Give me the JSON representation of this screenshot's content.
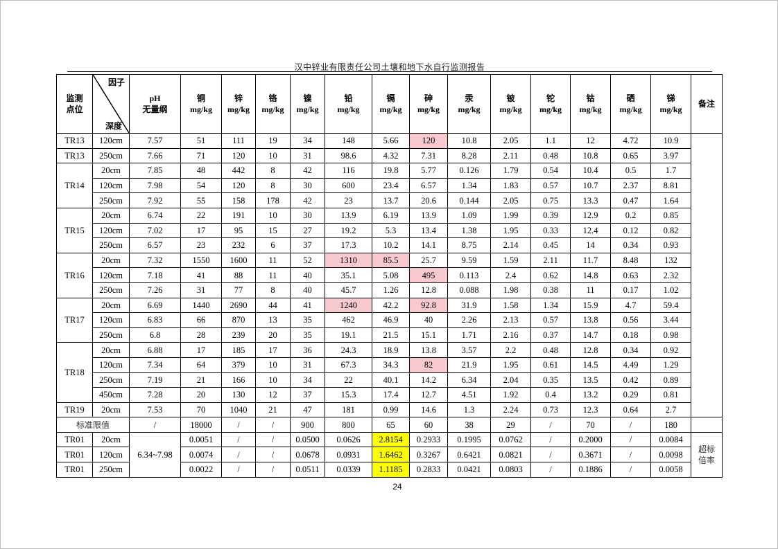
{
  "document": {
    "title": "汉中锌业有限责任公司土壤和地下水自行监测报告",
    "page_number": "24"
  },
  "table": {
    "header": {
      "site": "监测\n点位",
      "factor": "因子",
      "depth": "深度",
      "columns": [
        {
          "name": "pH",
          "unit": "无量纲"
        },
        {
          "name": "铜",
          "unit": "mg/kg"
        },
        {
          "name": "锌",
          "unit": "mg/kg"
        },
        {
          "name": "铬",
          "unit": "mg/kg"
        },
        {
          "name": "镍",
          "unit": "mg/kg"
        },
        {
          "name": "铅",
          "unit": "mg/kg"
        },
        {
          "name": "镉",
          "unit": "mg/kg"
        },
        {
          "name": "砷",
          "unit": "mg/kg"
        },
        {
          "name": "汞",
          "unit": "mg/kg"
        },
        {
          "name": "铍",
          "unit": "mg/kg"
        },
        {
          "name": "铊",
          "unit": "mg/kg"
        },
        {
          "name": "钴",
          "unit": "mg/kg"
        },
        {
          "name": "硒",
          "unit": "mg/kg"
        },
        {
          "name": "锑",
          "unit": "mg/kg"
        }
      ],
      "remarks": "备注"
    },
    "highlight_colors": {
      "exceeds_standard": "#f9c9d0",
      "exceedance_ratio": "#ffff00"
    },
    "groups": [
      {
        "site": "TR13",
        "rows": [
          {
            "depth": "120cm",
            "values": [
              "7.57",
              "51",
              "111",
              "19",
              "34",
              "148",
              "5.66",
              "120",
              "10.8",
              "2.05",
              "1.1",
              "12",
              "4.72",
              "10.9"
            ],
            "highlight": [
              7
            ]
          }
        ]
      },
      {
        "site": "TR13",
        "rows": [
          {
            "depth": "250cm",
            "values": [
              "7.66",
              "71",
              "120",
              "10",
              "31",
              "98.6",
              "4.32",
              "7.31",
              "8.28",
              "2.11",
              "0.48",
              "10.8",
              "0.65",
              "3.97"
            ],
            "highlight": []
          }
        ]
      },
      {
        "site": "TR14",
        "rows": [
          {
            "depth": "20cm",
            "values": [
              "7.85",
              "48",
              "442",
              "8",
              "42",
              "116",
              "19.8",
              "5.77",
              "0.126",
              "1.79",
              "0.54",
              "10.4",
              "0.5",
              "1.7"
            ],
            "highlight": []
          },
          {
            "depth": "120cm",
            "values": [
              "7.98",
              "54",
              "120",
              "8",
              "30",
              "600",
              "23.4",
              "6.57",
              "1.34",
              "1.83",
              "0.57",
              "10.7",
              "2.37",
              "8.81"
            ],
            "highlight": []
          },
          {
            "depth": "250cm",
            "values": [
              "7.92",
              "55",
              "158",
              "178",
              "42",
              "23",
              "13.7",
              "20.6",
              "0.144",
              "2.05",
              "0.75",
              "13.3",
              "0.47",
              "1.64"
            ],
            "highlight": []
          }
        ]
      },
      {
        "site": "TR15",
        "rows": [
          {
            "depth": "20cm",
            "values": [
              "6.74",
              "22",
              "191",
              "10",
              "30",
              "13.9",
              "6.19",
              "13.9",
              "1.09",
              "1.99",
              "0.39",
              "12.9",
              "0.2",
              "0.85"
            ],
            "highlight": []
          },
          {
            "depth": "120cm",
            "values": [
              "7.02",
              "17",
              "95",
              "15",
              "27",
              "19.2",
              "5.3",
              "13.4",
              "1.38",
              "1.95",
              "0.33",
              "12.4",
              "0.12",
              "0.82"
            ],
            "highlight": []
          },
          {
            "depth": "250cm",
            "values": [
              "6.57",
              "23",
              "232",
              "6",
              "37",
              "17.3",
              "10.2",
              "14.1",
              "8.75",
              "2.14",
              "0.45",
              "14",
              "0.34",
              "0.93"
            ],
            "highlight": []
          }
        ]
      },
      {
        "site": "TR16",
        "rows": [
          {
            "depth": "20cm",
            "values": [
              "7.32",
              "1550",
              "1600",
              "11",
              "52",
              "1310",
              "85.5",
              "25.7",
              "9.59",
              "1.59",
              "2.11",
              "11.7",
              "8.48",
              "132"
            ],
            "highlight": [
              5,
              6
            ]
          },
          {
            "depth": "120cm",
            "values": [
              "7.18",
              "41",
              "88",
              "11",
              "40",
              "35.1",
              "5.08",
              "495",
              "0.113",
              "2.4",
              "0.62",
              "14.8",
              "0.63",
              "2.32"
            ],
            "highlight": [
              7
            ]
          },
          {
            "depth": "250cm",
            "values": [
              "7.26",
              "31",
              "77",
              "8",
              "40",
              "45.7",
              "1.26",
              "12.8",
              "0.088",
              "1.98",
              "0.38",
              "11",
              "0.17",
              "1.02"
            ],
            "highlight": []
          }
        ]
      },
      {
        "site": "TR17",
        "rows": [
          {
            "depth": "20cm",
            "values": [
              "6.69",
              "1440",
              "2690",
              "44",
              "41",
              "1240",
              "42.2",
              "92.8",
              "31.9",
              "1.58",
              "1.34",
              "15.9",
              "4.7",
              "59.4"
            ],
            "highlight": [
              5,
              7
            ]
          },
          {
            "depth": "120cm",
            "values": [
              "6.83",
              "66",
              "870",
              "13",
              "35",
              "462",
              "46.9",
              "40",
              "2.26",
              "2.13",
              "0.57",
              "13.8",
              "0.56",
              "3.44"
            ],
            "highlight": []
          },
          {
            "depth": "250cm",
            "values": [
              "6.8",
              "28",
              "239",
              "20",
              "35",
              "19.1",
              "21.5",
              "15.1",
              "1.71",
              "2.16",
              "0.37",
              "14.7",
              "0.18",
              "0.98"
            ],
            "highlight": []
          }
        ]
      },
      {
        "site": "TR18",
        "rows": [
          {
            "depth": "20cm",
            "values": [
              "6.88",
              "17",
              "185",
              "17",
              "36",
              "24.3",
              "18.9",
              "13.8",
              "3.57",
              "2.2",
              "0.48",
              "12.8",
              "0.34",
              "0.92"
            ],
            "highlight": []
          },
          {
            "depth": "120cm",
            "values": [
              "7.34",
              "64",
              "379",
              "10",
              "31",
              "67.3",
              "34.3",
              "82",
              "21.9",
              "1.95",
              "0.61",
              "14.5",
              "4.49",
              "1.29"
            ],
            "highlight": [
              7
            ]
          },
          {
            "depth": "250cm",
            "values": [
              "7.19",
              "21",
              "166",
              "10",
              "34",
              "22",
              "40.1",
              "14.2",
              "6.34",
              "2.04",
              "0.35",
              "13.5",
              "0.42",
              "0.89"
            ],
            "highlight": []
          },
          {
            "depth": "450cm",
            "values": [
              "7.28",
              "20",
              "130",
              "12",
              "37",
              "15.3",
              "17.4",
              "12.7",
              "4.51",
              "1.92",
              "0.4",
              "13.2",
              "0.29",
              "0.81"
            ],
            "highlight": []
          }
        ]
      },
      {
        "site": "TR19",
        "rows": [
          {
            "depth": "20cm",
            "values": [
              "7.53",
              "70",
              "1040",
              "21",
              "47",
              "181",
              "0.99",
              "14.6",
              "1.3",
              "2.24",
              "0.73",
              "12.3",
              "0.64",
              "2.7"
            ],
            "highlight": []
          }
        ]
      }
    ],
    "standard": {
      "label": "标准限值",
      "values": [
        "/",
        "18000",
        "/",
        "/",
        "900",
        "800",
        "65",
        "60",
        "38",
        "29",
        "/",
        "70",
        "/",
        "180"
      ]
    },
    "exceedance": {
      "ph_range": "6.34~7.98",
      "remark": "超标倍率",
      "rows": [
        {
          "site": "TR01",
          "depth": "20cm",
          "values": [
            "0.0051",
            "/",
            "/",
            "0.0500",
            "0.0626",
            "2.8154",
            "0.2933",
            "0.1995",
            "0.0762",
            "/",
            "0.2000",
            "/",
            "0.0084"
          ],
          "highlight": [
            5
          ]
        },
        {
          "site": "TR01",
          "depth": "120cm",
          "values": [
            "0.0074",
            "/",
            "/",
            "0.0678",
            "0.0931",
            "1.6462",
            "0.3267",
            "0.6421",
            "0.0821",
            "/",
            "0.3671",
            "/",
            "0.0098"
          ],
          "highlight": [
            5
          ]
        },
        {
          "site": "TR01",
          "depth": "250cm",
          "values": [
            "0.0022",
            "/",
            "/",
            "0.0511",
            "0.0339",
            "1.1185",
            "0.2833",
            "0.0421",
            "0.0803",
            "/",
            "0.1886",
            "/",
            "0.0058"
          ],
          "highlight": [
            5
          ]
        }
      ]
    }
  }
}
